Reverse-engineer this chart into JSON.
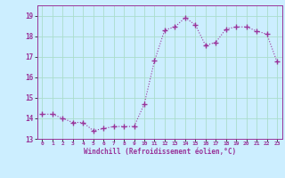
{
  "x": [
    0,
    1,
    2,
    3,
    4,
    5,
    6,
    7,
    8,
    9,
    10,
    11,
    12,
    13,
    14,
    15,
    16,
    17,
    18,
    19,
    20,
    21,
    22,
    23
  ],
  "y": [
    14.2,
    14.2,
    14.0,
    13.8,
    13.8,
    13.4,
    13.5,
    13.6,
    13.6,
    13.6,
    14.7,
    16.8,
    18.3,
    18.45,
    18.9,
    18.55,
    17.55,
    17.7,
    18.35,
    18.45,
    18.45,
    18.25,
    18.1,
    16.75
  ],
  "line_color": "#993399",
  "marker": "+",
  "marker_size": 4,
  "bg_color": "#cceeff",
  "grid_color": "#aaddcc",
  "xlabel": "Windchill (Refroidissement éolien,°C)",
  "xlabel_color": "#993399",
  "tick_color": "#993399",
  "ylim": [
    13,
    19.5
  ],
  "xlim": [
    -0.5,
    23.5
  ],
  "yticks": [
    13,
    14,
    15,
    16,
    17,
    18,
    19
  ],
  "xticks": [
    0,
    1,
    2,
    3,
    4,
    5,
    6,
    7,
    8,
    9,
    10,
    11,
    12,
    13,
    14,
    15,
    16,
    17,
    18,
    19,
    20,
    21,
    22,
    23
  ],
  "spine_color": "#993399"
}
